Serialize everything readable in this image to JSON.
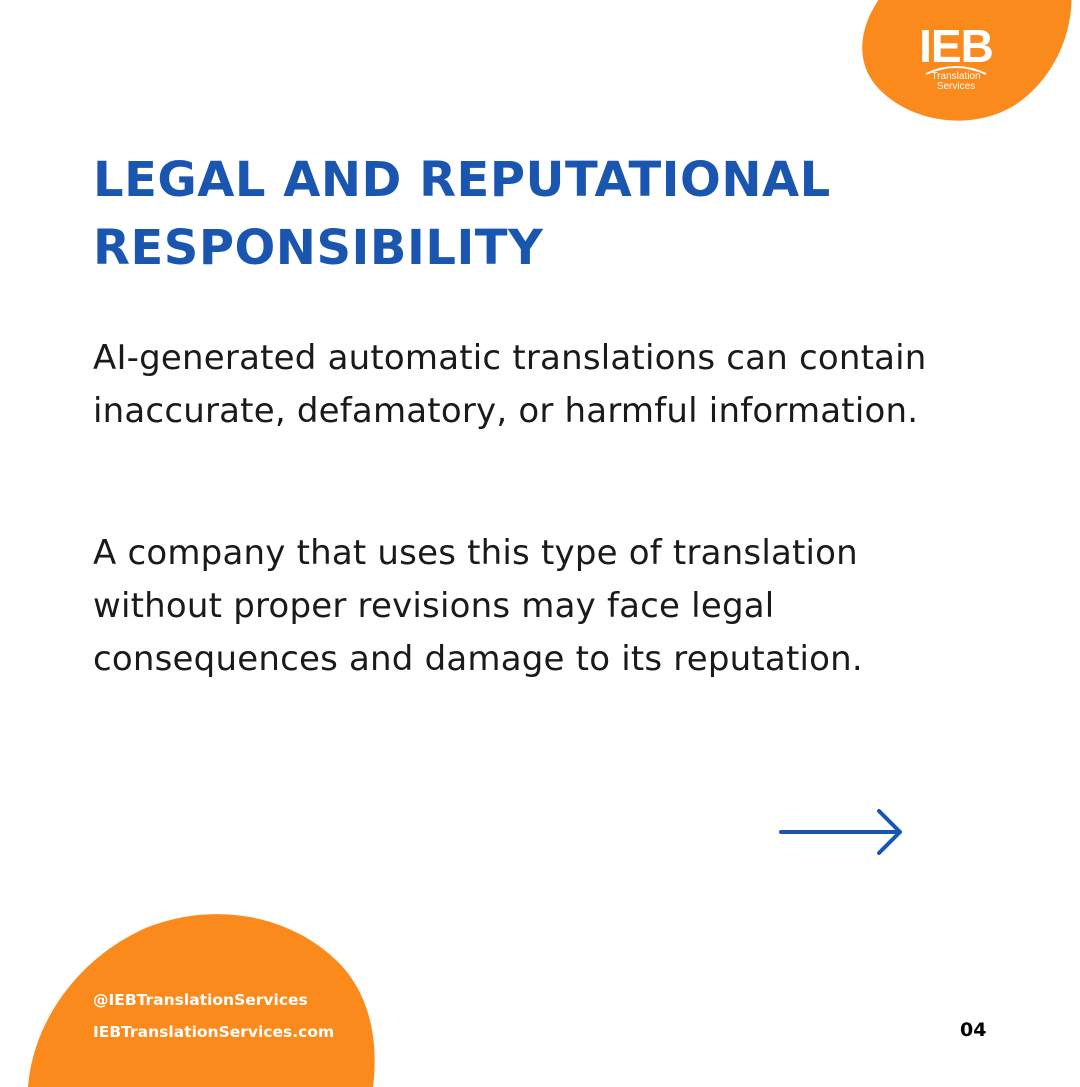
{
  "colors": {
    "accent_orange": "#fb8a1d",
    "title_blue": "#1a56b0",
    "body_text": "#1a1a1a"
  },
  "logo": {
    "mark": "IEB",
    "sub_line1": "Translation",
    "sub_line2": "Services"
  },
  "title": "LEGAL AND REPUTATIONAL RESPONSIBILITY",
  "paragraphs": [
    "AI-generated automatic translations can contain inaccurate, defamatory, or harmful information.",
    "A company that uses this type of translation without proper revisions may face legal consequences and damage to its reputation."
  ],
  "next_icon": "arrow-right-icon",
  "footer": {
    "handle": "@IEBTranslationServices",
    "website": "IEBTranslationServices.com",
    "page_number": "04"
  }
}
